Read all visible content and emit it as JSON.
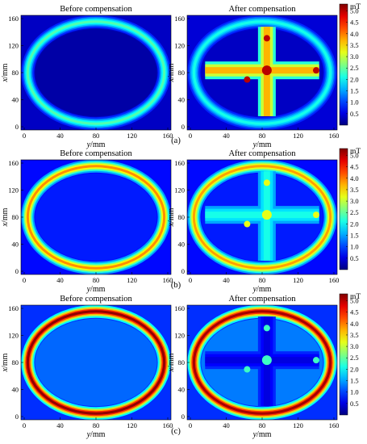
{
  "chart_data": {
    "type": "heatmap",
    "colorbar": {
      "unit": "mT",
      "ticks": [
        5.0,
        4.5,
        4.0,
        3.5,
        3.0,
        2.5,
        2.0,
        1.5,
        1.0,
        0.5
      ],
      "tick_labels": [
        "5.0",
        "4.5",
        "4.0",
        "3.5",
        "3.0",
        "2.5",
        "2.0",
        "1.5",
        "1.0",
        "0.5"
      ],
      "range": [
        0,
        5.3
      ],
      "colormap": "jet"
    },
    "axes": {
      "xlabel_italic": "y",
      "xlabel_rest": "/mm",
      "ylabel_italic": "x",
      "ylabel_rest": "/mm",
      "xticks": [
        0,
        40,
        80,
        120,
        160
      ],
      "xtick_labels": [
        "0",
        "40",
        "80",
        "120",
        "160"
      ],
      "yticks": [
        0,
        40,
        80,
        120,
        160
      ],
      "ytick_labels": [
        "0",
        "40",
        "80",
        "120",
        "160"
      ],
      "xlim": [
        0,
        160
      ],
      "ylim": [
        0,
        160
      ]
    },
    "rows": [
      {
        "caption": "(a)",
        "panels": [
          {
            "title": "Before compensation",
            "ring_peak_mT": 2.4,
            "background_mT": 0.35,
            "inner_mT": 0.2,
            "cross_peak_mT": 0,
            "hotspot_mT": 0
          },
          {
            "title": "After compensation",
            "ring_peak_mT": 2.1,
            "background_mT": 0.45,
            "inner_mT": 0.35,
            "cross_peak_mT": 3.7,
            "hotspot_mT": 5.0
          }
        ]
      },
      {
        "caption": "(b)",
        "panels": [
          {
            "title": "Before compensation",
            "ring_peak_mT": 3.9,
            "background_mT": 0.7,
            "inner_mT": 0.8,
            "cross_peak_mT": 0,
            "hotspot_mT": 0
          },
          {
            "title": "After compensation",
            "ring_peak_mT": 3.8,
            "background_mT": 0.7,
            "inner_mT": 0.8,
            "cross_peak_mT": 2.1,
            "hotspot_mT": 3.2
          }
        ]
      },
      {
        "caption": "(c)",
        "panels": [
          {
            "title": "Before compensation",
            "ring_peak_mT": 5.2,
            "background_mT": 0.9,
            "inner_mT": 1.2,
            "cross_peak_mT": 0,
            "hotspot_mT": 0
          },
          {
            "title": "After compensation",
            "ring_peak_mT": 5.1,
            "background_mT": 0.9,
            "inner_mT": 1.3,
            "cross_peak_mT": 0.5,
            "hotspot_mT": 2.3
          }
        ]
      }
    ]
  }
}
